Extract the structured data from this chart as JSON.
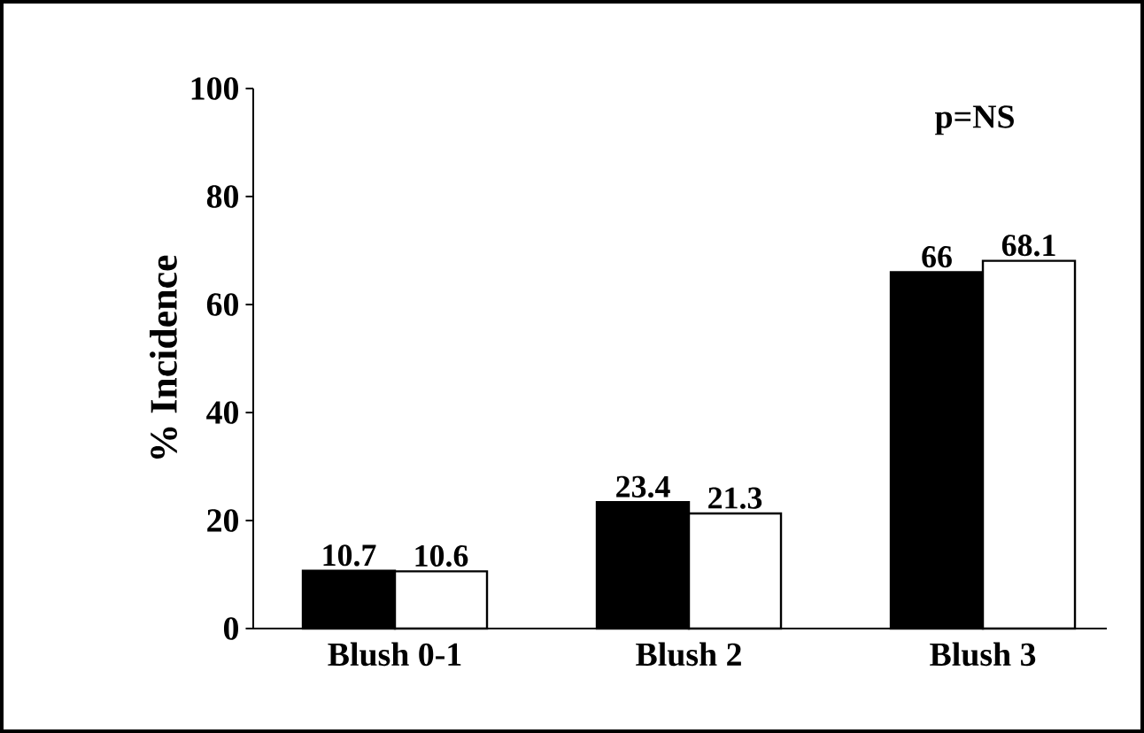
{
  "chart_data": {
    "type": "bar",
    "ylabel": "% Incidence",
    "categories": [
      "Blush 0-1",
      "Blush 2",
      "Blush 3"
    ],
    "series": [
      {
        "color": "#000000",
        "values": [
          10.7,
          23.4,
          66
        ]
      },
      {
        "color": "#ffffff",
        "values": [
          10.6,
          21.3,
          68.1
        ]
      }
    ],
    "ylim": [
      0,
      100
    ],
    "yticks": [
      0,
      20,
      40,
      60,
      80,
      100
    ],
    "data_labels": true,
    "annotations": [
      "p=NS"
    ]
  }
}
